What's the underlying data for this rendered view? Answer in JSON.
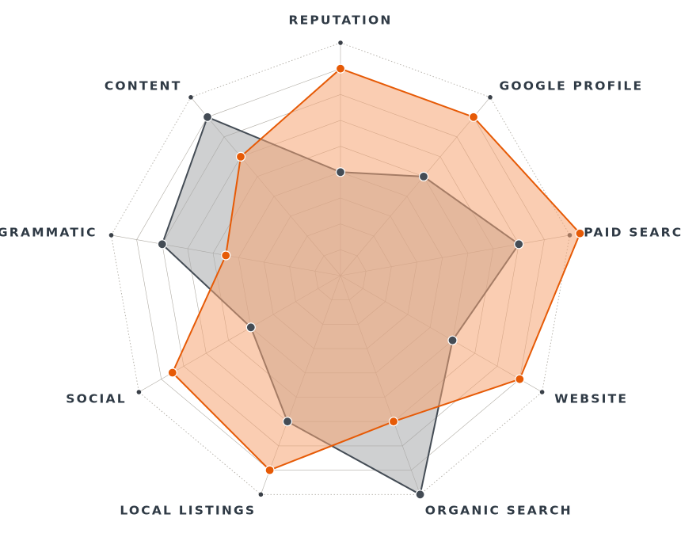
{
  "chart_data": {
    "type": "radar",
    "title": "",
    "axes": [
      "REPUTATION",
      "GOOGLE PROFILE",
      "PAID SEARCH",
      "WEBSITE",
      "ORGANIC SEARCH",
      "LOCAL LISTINGS",
      "SOCIAL",
      "PROGRAMMATIC",
      "CONTENT"
    ],
    "rlim": [
      0,
      9
    ],
    "rings": 9,
    "grid": true,
    "series": [
      {
        "values": [
          4,
          5,
          7,
          5,
          9,
          6,
          4,
          7,
          8
        ],
        "color": "#444c55",
        "fill": "#a7a9ab",
        "fill_opacity": 0.55
      },
      {
        "values": [
          8,
          8,
          9.4,
          8,
          6,
          8,
          7.5,
          4.5,
          6
        ],
        "color": "#e65a06",
        "fill": "#f5a472",
        "fill_opacity": 0.55
      }
    ],
    "colors": {
      "label": "#2f3a45",
      "grid": "#b0aca4",
      "spoke": "#b0aca4",
      "outer_dot": "#3a4048"
    }
  }
}
